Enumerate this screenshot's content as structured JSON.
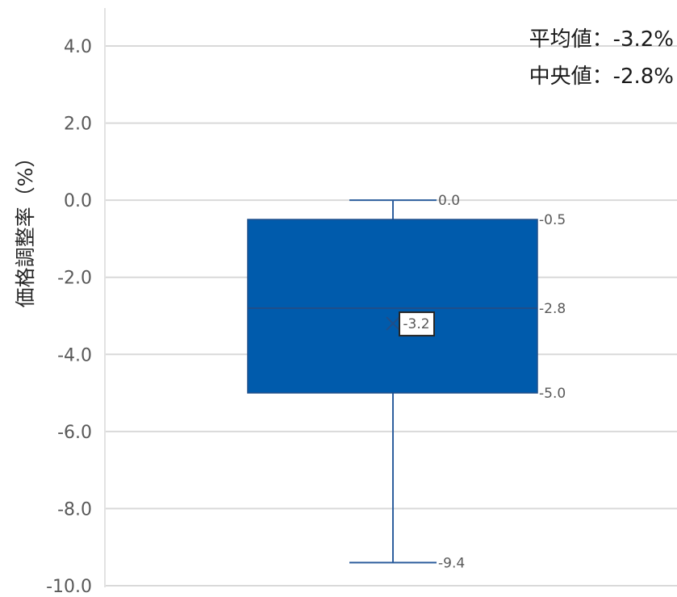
{
  "chart_data": {
    "type": "box",
    "ylabel": "価格調整率（%）",
    "ylim": [
      -10.0,
      4.0
    ],
    "y_ticks": [
      "4.0",
      "2.0",
      "0.0",
      "-2.0",
      "-4.0",
      "-6.0",
      "-8.0",
      "-10.0"
    ],
    "y_tick_values": [
      4.0,
      2.0,
      0.0,
      -2.0,
      -4.0,
      -6.0,
      -8.0,
      -10.0
    ],
    "grid": true,
    "box": {
      "whisker_max": 0.0,
      "q3": -0.5,
      "median": -2.8,
      "mean": -3.2,
      "q1": -5.0,
      "whisker_min": -9.4
    },
    "data_labels": {
      "whisker_max": "0.0",
      "q3": "-0.5",
      "median": "-2.8",
      "mean": "-3.2",
      "q1": "-5.0",
      "whisker_min": "-9.4"
    },
    "annotations": {
      "mean": "平均値：-3.2%",
      "median": "中央値：-2.8%"
    },
    "colors": {
      "box_fill": "#005bac",
      "whisker": "#2e5f9e",
      "grid": "#d9d9d9",
      "median_line": "#1f4e8a"
    }
  }
}
